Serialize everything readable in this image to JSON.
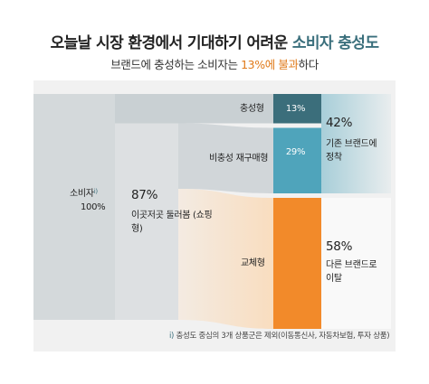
{
  "header": {
    "title_prefix": "오늘날 시장 환경에서 기대하기 어려운 ",
    "title_accent": "소비자 충성도",
    "subtitle_prefix": "브랜드에 충성하는 소비자는 ",
    "subtitle_highlight": "13%에 불과",
    "subtitle_suffix": "하다"
  },
  "colors": {
    "panel_bg": "#f1f1f1",
    "band_gray": "#c9d0d3",
    "loyal": "#3b6e7b",
    "repurchase": "#4fa4bb",
    "switch": "#f28a2a",
    "switch_band": "#f9ddbf",
    "accent_text": "#3a6f7c",
    "highlight_text": "#e07a1a"
  },
  "chart_data": {
    "type": "sankey",
    "nodes": [
      {
        "id": "consumer",
        "label": "소비자",
        "footnote_mark": "i)",
        "value_label": "100%"
      },
      {
        "id": "shopping",
        "label": "이곳저곳 둘러봄 (쇼핑형)",
        "value_label": "87%"
      },
      {
        "id": "loyal",
        "label": "충성형",
        "value_label": "13%"
      },
      {
        "id": "repurchase",
        "label": "비충성 재구매형",
        "value_label": "29%"
      },
      {
        "id": "switch",
        "label": "교체형",
        "value_label": ""
      }
    ],
    "links": [
      {
        "source": "consumer",
        "target": "loyal",
        "value": 13
      },
      {
        "source": "consumer",
        "target": "shopping",
        "value": 87
      },
      {
        "source": "shopping",
        "target": "repurchase",
        "value": 29
      },
      {
        "source": "shopping",
        "target": "switch",
        "value": 58
      }
    ],
    "outcomes": [
      {
        "value_label": "42%",
        "label": "기존 브랜드에 정착",
        "members": [
          "loyal",
          "repurchase"
        ]
      },
      {
        "value_label": "58%",
        "label": "다른 브랜드로 이탈",
        "members": [
          "switch"
        ]
      }
    ],
    "footnote": "충성도 중심의 3개 상품군은 제외(이동통신사, 자동차보험, 투자 상품)",
    "footnote_mark": "i)"
  }
}
